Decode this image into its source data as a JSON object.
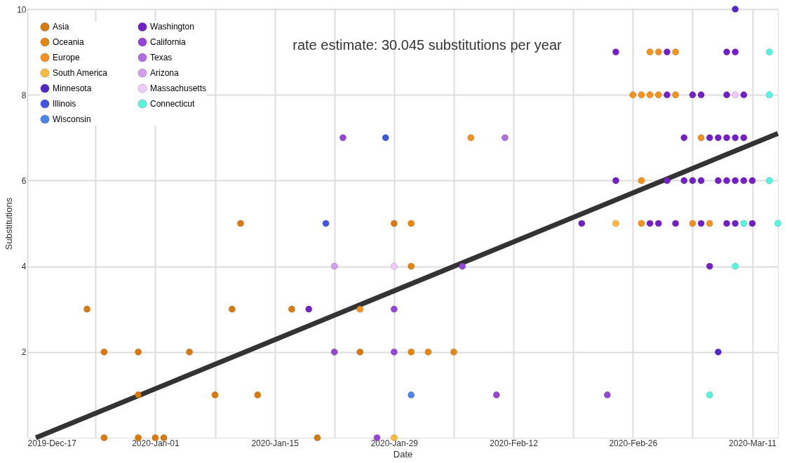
{
  "chart_data": {
    "type": "scatter",
    "xlabel": "Date",
    "ylabel": "Substitutions",
    "annotations": [
      "rate estimate: 30.045 substitutions per year"
    ],
    "xlim": [
      "2019-12-17",
      "2020-03-14"
    ],
    "ylim": [
      0,
      10
    ],
    "xticks": [
      {
        "value": "2019-12-17",
        "label": "2019-Dec-17"
      },
      {
        "value": "2019-12-25",
        "label": null
      },
      {
        "value": "2020-01-01",
        "label": "2020-Jan-01"
      },
      {
        "value": "2020-01-08",
        "label": null
      },
      {
        "value": "2020-01-15",
        "label": "2020-Jan-15"
      },
      {
        "value": "2020-01-22",
        "label": null
      },
      {
        "value": "2020-01-29",
        "label": "2020-Jan-29"
      },
      {
        "value": "2020-02-05",
        "label": null
      },
      {
        "value": "2020-02-12",
        "label": "2020-Feb-12"
      },
      {
        "value": "2020-02-19",
        "label": null
      },
      {
        "value": "2020-02-26",
        "label": "2020-Feb-26"
      },
      {
        "value": "2020-03-04",
        "label": null
      },
      {
        "value": "2020-03-11",
        "label": "2020-Mar-11"
      }
    ],
    "yticks": [
      2,
      4,
      6,
      8,
      10
    ],
    "grid": true,
    "legend": "top left",
    "marker": "circle",
    "series": [
      {
        "name": "Asia",
        "color": "#d97a0e",
        "x": [
          "2019-12-24",
          "2019-12-26",
          "2019-12-30",
          "2020-01-05",
          "2019-12-30",
          "2020-01-08",
          "2020-01-10",
          "2019-12-26",
          "2019-12-30",
          "2020-01-01",
          "2020-01-02",
          "2020-01-11",
          "2020-01-17",
          "2020-01-13",
          "2020-01-20",
          "2020-01-25",
          "2020-01-29"
        ],
        "values": [
          3,
          2,
          2,
          2,
          1,
          1,
          3,
          0,
          0,
          0,
          0,
          5,
          3,
          1,
          0,
          2,
          5
        ]
      },
      {
        "name": "Oceania",
        "color": "#e5870f",
        "x": [
          "2020-01-31",
          "2020-01-31",
          "2020-01-31",
          "2020-02-02",
          "2020-02-05"
        ],
        "values": [
          5,
          4,
          2,
          2,
          2
        ]
      },
      {
        "name": "Europe",
        "color": "#f5921f",
        "x": [
          "2020-01-25",
          "2020-02-07",
          "2020-02-28",
          "2020-02-29",
          "2020-03-02",
          "2020-02-26",
          "2020-02-27",
          "2020-02-28",
          "2020-02-29",
          "2020-03-02",
          "2020-03-05",
          "2020-02-27",
          "2020-02-27",
          "2020-03-04",
          "2020-03-06"
        ],
        "values": [
          3,
          7,
          9,
          9,
          9,
          8,
          8,
          8,
          8,
          8,
          7,
          6,
          5,
          5,
          5
        ]
      },
      {
        "name": "South America",
        "color": "#fdb940",
        "x": [
          "2020-01-29",
          "2020-02-24"
        ],
        "values": [
          0,
          5
        ]
      },
      {
        "name": "Minnesota",
        "color": "#5228c8",
        "x": [
          "2020-03-09",
          "2020-03-07"
        ],
        "values": [
          10,
          2
        ]
      },
      {
        "name": "Illinois",
        "color": "#4055e0",
        "x": [
          "2020-01-28",
          "2020-01-21"
        ],
        "values": [
          7,
          5
        ]
      },
      {
        "name": "Wisconsin",
        "color": "#4a86e8",
        "x": [
          "2020-01-31"
        ],
        "values": [
          1
        ]
      },
      {
        "name": "Washington",
        "color": "#7420c8",
        "x": [
          "2020-01-19",
          "2020-02-20",
          "2020-02-24",
          "2020-03-01",
          "2020-03-08",
          "2020-03-09",
          "2020-03-01",
          "2020-03-04",
          "2020-03-05",
          "2020-03-08",
          "2020-03-10",
          "2020-03-03",
          "2020-03-06",
          "2020-03-07",
          "2020-03-08",
          "2020-03-09",
          "2020-03-10",
          "2020-02-24",
          "2020-03-01",
          "2020-03-03",
          "2020-03-04",
          "2020-03-05",
          "2020-03-07",
          "2020-03-08",
          "2020-03-09",
          "2020-03-10",
          "2020-03-11",
          "2020-02-28",
          "2020-02-29",
          "2020-03-02",
          "2020-03-05",
          "2020-03-08",
          "2020-03-09",
          "2020-03-11",
          "2020-03-06"
        ],
        "values": [
          3,
          5,
          9,
          9,
          9,
          9,
          8,
          8,
          8,
          8,
          8,
          7,
          7,
          7,
          7,
          7,
          7,
          6,
          6,
          6,
          6,
          6,
          6,
          6,
          6,
          6,
          6,
          5,
          5,
          5,
          5,
          5,
          5,
          5,
          4
        ]
      },
      {
        "name": "California",
        "color": "#9646d6",
        "x": [
          "2020-01-23",
          "2020-01-29",
          "2020-01-22",
          "2020-01-29",
          "2020-01-27",
          "2020-02-06",
          "2020-02-10",
          "2020-02-23"
        ],
        "values": [
          7,
          3,
          2,
          2,
          0,
          4,
          1,
          1
        ]
      },
      {
        "name": "Texas",
        "color": "#b06fe0",
        "x": [
          "2020-02-11"
        ],
        "values": [
          7
        ]
      },
      {
        "name": "Arizona",
        "color": "#d19ef0",
        "x": [
          "2020-01-22"
        ],
        "values": [
          4
        ]
      },
      {
        "name": "Massachusetts",
        "color": "#eecbf8",
        "x": [
          "2020-01-29",
          "2020-03-09"
        ],
        "values": [
          4,
          8
        ]
      },
      {
        "name": "Connecticut",
        "color": "#55f5e0",
        "x": [
          "2020-03-13",
          "2020-03-13",
          "2020-03-13",
          "2020-03-10",
          "2020-03-14",
          "2020-03-09",
          "2020-03-06"
        ],
        "values": [
          9,
          8,
          6,
          5,
          5,
          4,
          1
        ]
      },
      {
        "type": "line",
        "marker": "none",
        "color": "#333333",
        "x": [
          "2019-12-18",
          "2020-03-14"
        ],
        "values": [
          0,
          7.1
        ]
      }
    ]
  }
}
